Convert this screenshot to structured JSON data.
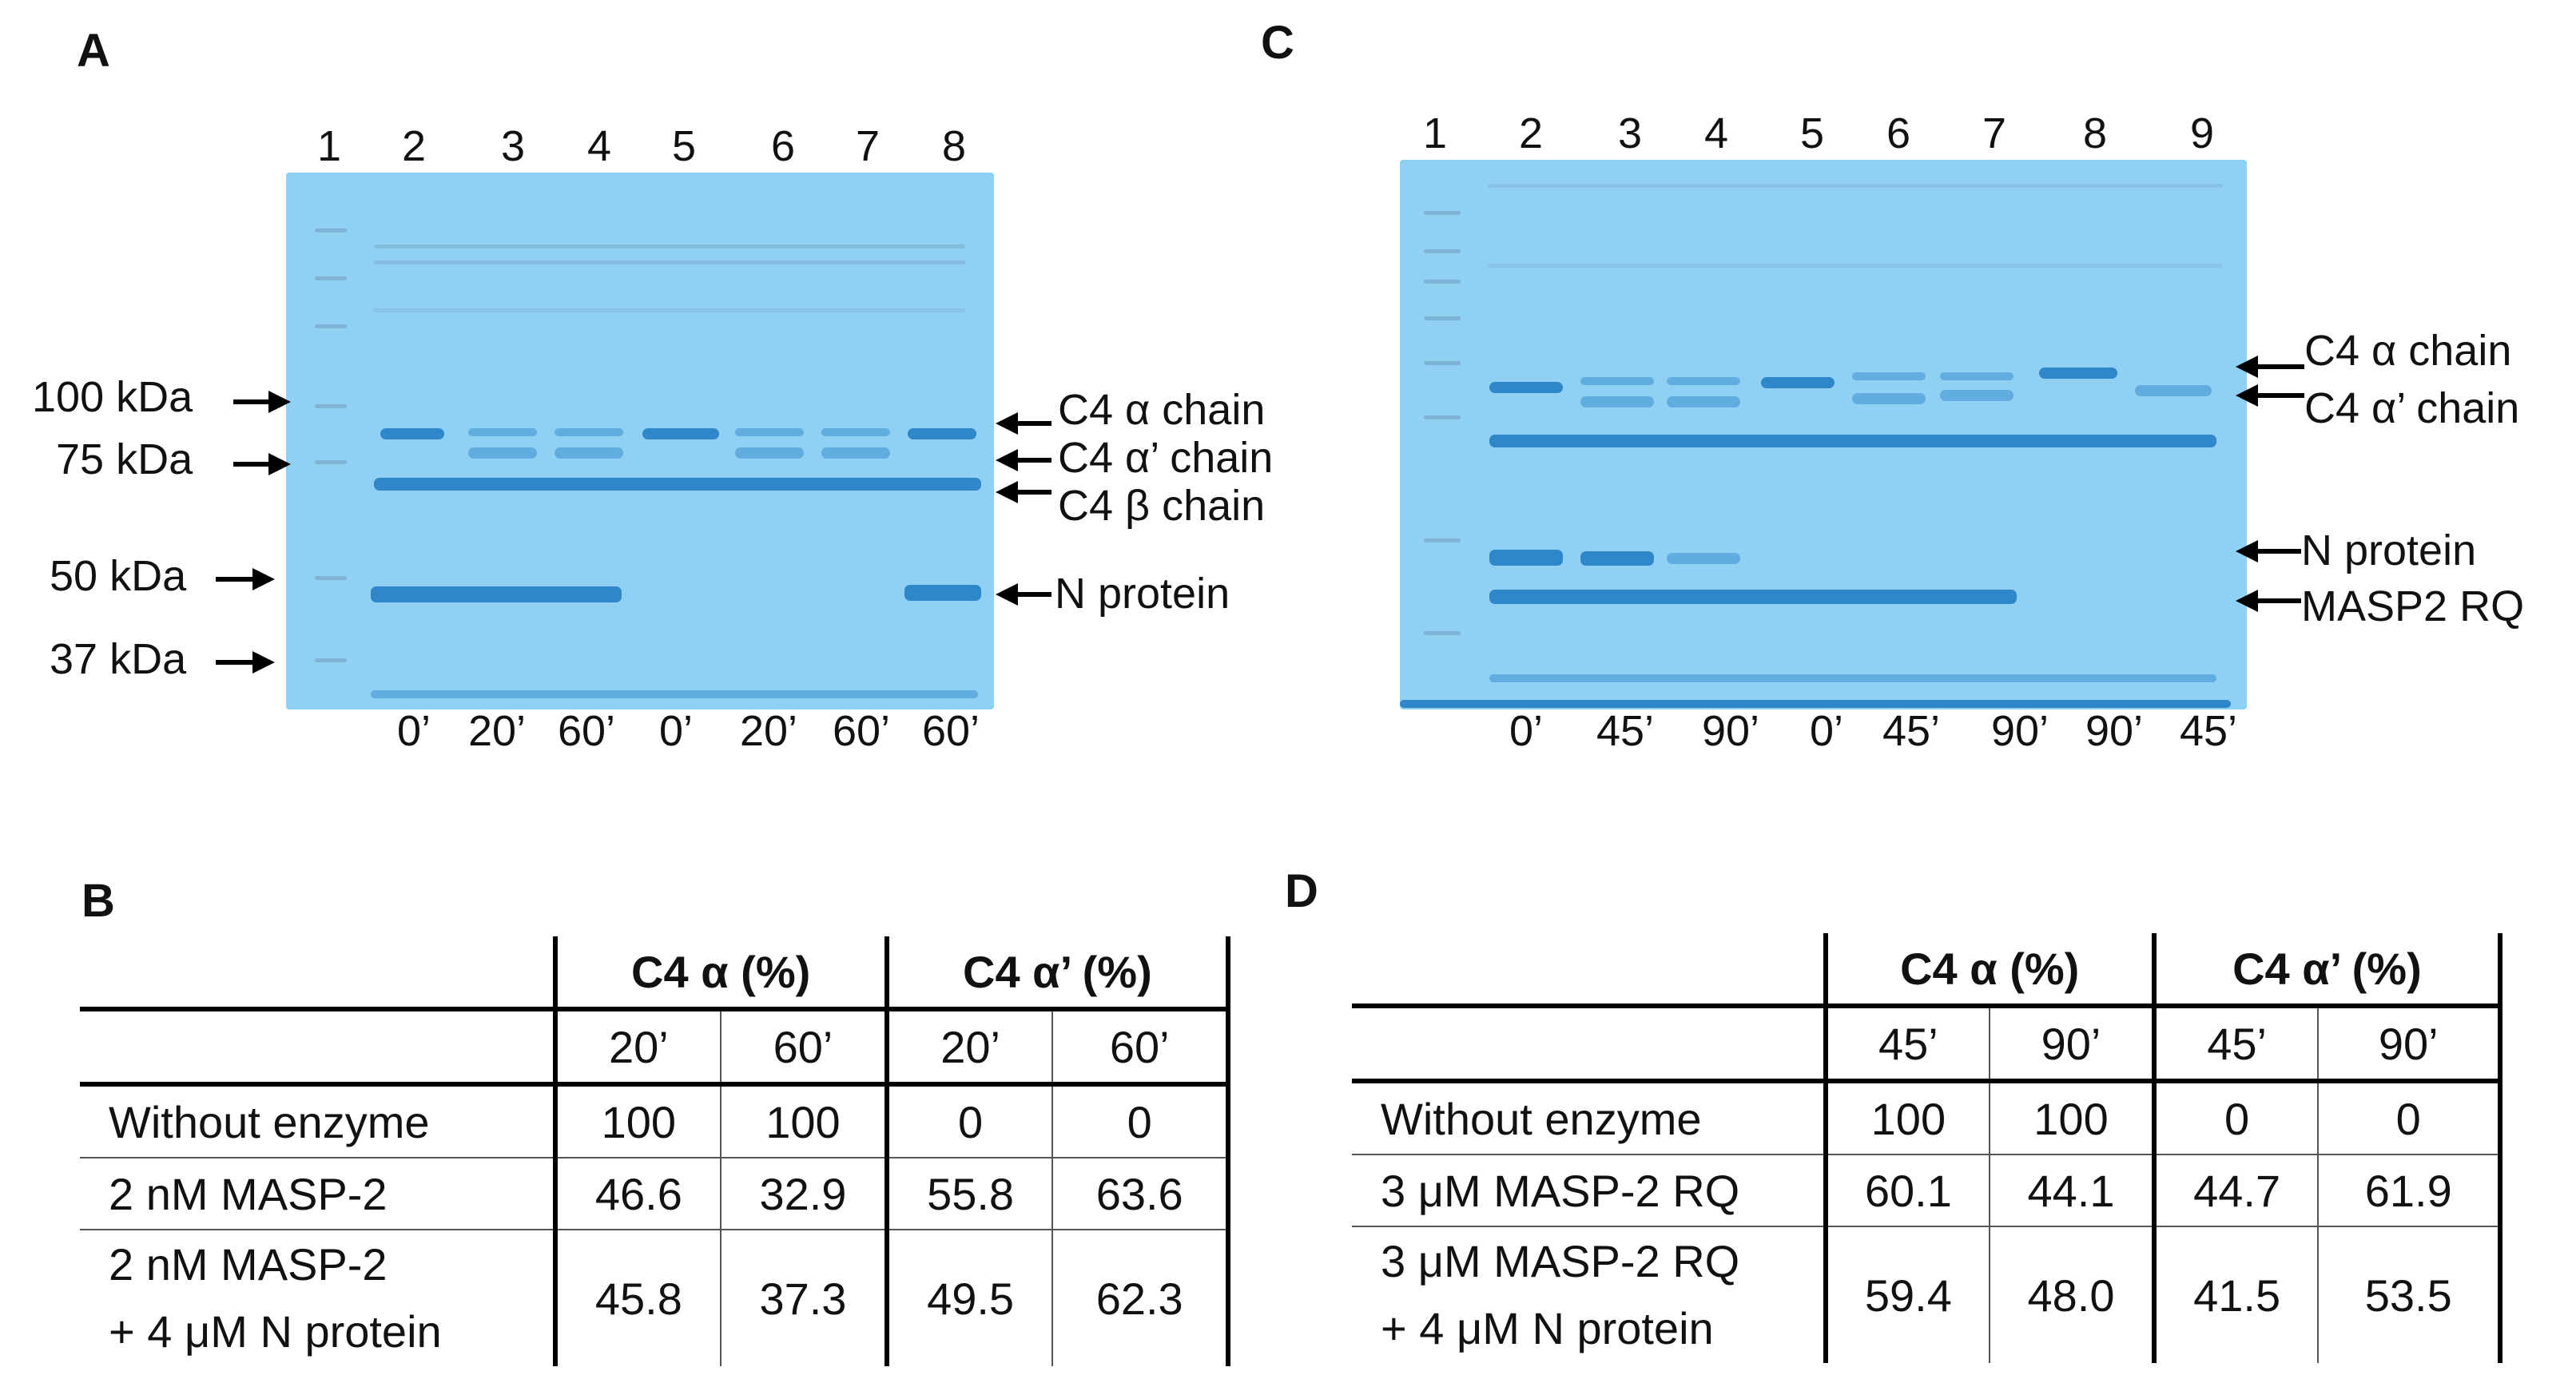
{
  "panels": {
    "A": {
      "letter": "A",
      "lanes": [
        "1",
        "2",
        "3",
        "4",
        "5",
        "6",
        "7",
        "8"
      ],
      "times": [
        "0’",
        "20’",
        "60’",
        "0’",
        "20’",
        "60’",
        "60’"
      ],
      "left_labels": [
        "100 kDa",
        "75 kDa",
        "50 kDa",
        "37 kDa"
      ],
      "right_labels": [
        "C4 α chain",
        "C4 α’ chain",
        "C4 β chain",
        "N protein"
      ]
    },
    "C": {
      "letter": "C",
      "lanes": [
        "1",
        "2",
        "3",
        "4",
        "5",
        "6",
        "7",
        "8",
        "9"
      ],
      "times": [
        "0’",
        "45’",
        "90’",
        "0’",
        "45’",
        "90’",
        "90’",
        "45’"
      ],
      "right_labels": [
        "C4 α chain",
        "C4 α’ chain",
        "N protein",
        "MASP2 RQ"
      ]
    },
    "B": {
      "letter": "B",
      "group_headers": [
        "C4 α (%)",
        "C4 α’ (%)"
      ],
      "time_headers": [
        "20’",
        "60’",
        "20’",
        "60’"
      ],
      "rows": [
        {
          "label": [
            "Without enzyme"
          ],
          "values": [
            "100",
            "100",
            "0",
            "0"
          ]
        },
        {
          "label": [
            "2 nM MASP-2"
          ],
          "values": [
            "46.6",
            "32.9",
            "55.8",
            "63.6"
          ]
        },
        {
          "label": [
            "2 nM MASP-2",
            "+ 4 μM N protein"
          ],
          "values": [
            "45.8",
            "37.3",
            "49.5",
            "62.3"
          ]
        }
      ]
    },
    "D": {
      "letter": "D",
      "group_headers": [
        "C4 α (%)",
        "C4 α’ (%)"
      ],
      "time_headers": [
        "45’",
        "90’",
        "45’",
        "90’"
      ],
      "rows": [
        {
          "label": [
            "Without enzyme"
          ],
          "values": [
            "100",
            "100",
            "0",
            "0"
          ]
        },
        {
          "label": [
            "3 μM MASP-2 RQ"
          ],
          "values": [
            "60.1",
            "44.1",
            "44.7",
            "61.9"
          ]
        },
        {
          "label": [
            "3 μM MASP-2 RQ",
            "+ 4 μM N protein"
          ],
          "values": [
            "59.4",
            "48.0",
            "41.5",
            "53.5"
          ]
        }
      ]
    }
  }
}
